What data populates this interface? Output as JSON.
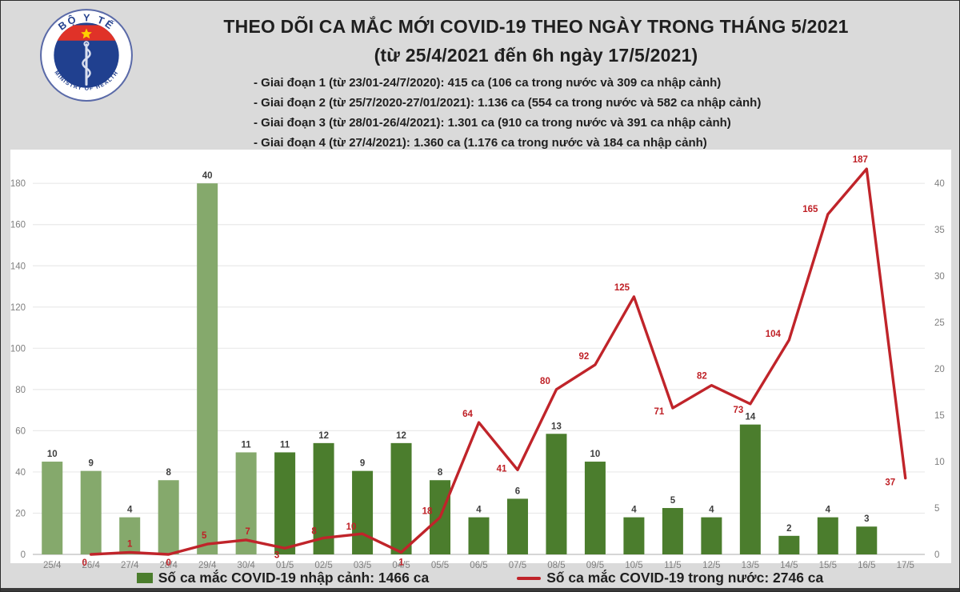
{
  "header": {
    "title_line1": "THEO DÕI CA MẮC MỚI COVID-19 THEO NGÀY TRONG THÁNG 5/2021",
    "title_line2": "(từ 25/4/2021 đến 6h ngày 17/5/2021)",
    "phases": [
      "- Giai đoạn 1 (từ 23/01-24/7/2020): 415 ca (106 ca trong nước và 309 ca nhập cảnh)",
      "- Giai đoạn 2 (từ 25/7/2020-27/01/2021): 1.136 ca (554 ca trong nước và 582 ca nhập cảnh)",
      "- Giai đoạn 3 (từ 28/01-26/4/2021): 1.301 ca (910 ca trong nước và 391 ca nhập cảnh)",
      "- Giai đoạn 4 (từ 27/4/2021): 1.360 ca (1.176 ca trong nước và 184 ca nhập cảnh)"
    ],
    "logo": {
      "top_text": "BỘ Y TẾ",
      "bottom_text": "MINISTRY OF HEALTH"
    }
  },
  "chart_data": {
    "type": "combo-bar-line",
    "categories": [
      "25/4",
      "26/4",
      "27/4",
      "28/4",
      "29/4",
      "30/4",
      "01/5",
      "02/5",
      "03/5",
      "04/5",
      "05/5",
      "06/5",
      "07/5",
      "08/5",
      "09/5",
      "10/5",
      "11/5",
      "12/5",
      "13/5",
      "14/5",
      "15/5",
      "16/5",
      "17/5"
    ],
    "series": [
      {
        "name": "Số ca mắc COVID-19 nhập cảnh",
        "type": "bar",
        "axis": "right",
        "values": [
          10,
          9,
          4,
          8,
          40,
          11,
          11,
          12,
          9,
          12,
          8,
          4,
          6,
          13,
          10,
          4,
          5,
          4,
          14,
          2,
          4,
          3,
          null
        ]
      },
      {
        "name": "Số ca mắc COVID-19 trong nước",
        "type": "line",
        "axis": "left",
        "values": [
          null,
          0,
          1,
          0,
          5,
          7,
          3,
          8,
          10,
          1,
          18,
          64,
          41,
          80,
          92,
          125,
          71,
          82,
          73,
          104,
          165,
          187,
          37
        ]
      }
    ],
    "left_axis": {
      "ticks": [
        0,
        20,
        40,
        60,
        80,
        100,
        120,
        140,
        160,
        180
      ],
      "max": 189
    },
    "right_axis": {
      "ticks": [
        0,
        5,
        10,
        15,
        20,
        25,
        30,
        35,
        40
      ],
      "scale_to_left": 4.5
    },
    "grid": true,
    "colors": {
      "bar_light": "#85a96c",
      "bar_dark": "#4b7d2d",
      "bar_light_count": 6,
      "line": "#c0242a",
      "line_label": "#bf2026",
      "bar_label": "#3f3f3f",
      "axis_text": "#7f7f7f",
      "grid": "#e9e9e9"
    },
    "legend": [
      {
        "label": "Số ca mắc COVID-19 nhập cảnh: 1466 ca",
        "swatch": "square",
        "color": "#4b7d2d"
      },
      {
        "label": "Số ca mắc COVID-19 trong nước: 2746 ca",
        "swatch": "line",
        "color": "#c0242a"
      }
    ]
  }
}
